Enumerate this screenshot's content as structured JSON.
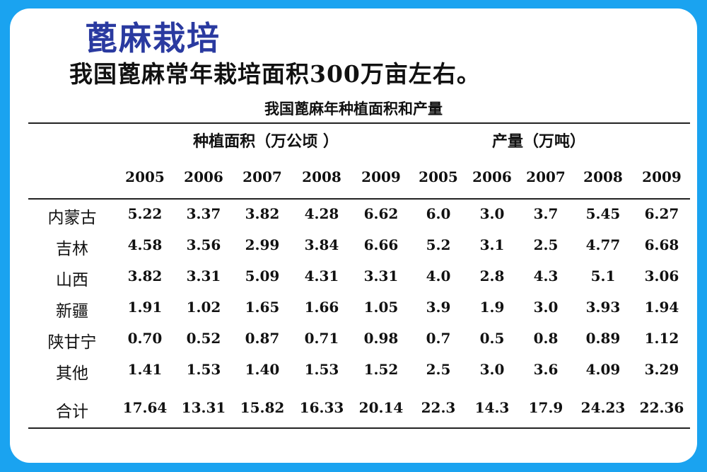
{
  "slide": {
    "title": "蓖麻栽培",
    "subtitle": "我国蓖麻常年栽培面积300万亩左右。"
  },
  "table": {
    "caption": "我国蓖麻年种植面积和产量",
    "group_area": "种植面积（万公顷 ）",
    "group_output": "产量（万吨）",
    "years": [
      "2005",
      "2006",
      "2007",
      "2008",
      "2009",
      "2005",
      "2006",
      "2007",
      "2008",
      "2009"
    ],
    "rows": [
      {
        "region": "内蒙古",
        "values": [
          "5.22",
          "3.37",
          "3.82",
          "4.28",
          "6.62",
          "6.0",
          "3.0",
          "3.7",
          "5.45",
          "6.27"
        ]
      },
      {
        "region": "吉林",
        "values": [
          "4.58",
          "3.56",
          "2.99",
          "3.84",
          "6.66",
          "5.2",
          "3.1",
          "2.5",
          "4.77",
          "6.68"
        ]
      },
      {
        "region": "山西",
        "values": [
          "3.82",
          "3.31",
          "5.09",
          "4.31",
          "3.31",
          "4.0",
          "2.8",
          "4.3",
          "5.1",
          "3.06"
        ]
      },
      {
        "region": "新疆",
        "values": [
          "1.91",
          "1.02",
          "1.65",
          "1.66",
          "1.05",
          "3.9",
          "1.9",
          "3.0",
          "3.93",
          "1.94"
        ]
      },
      {
        "region": "陕甘宁",
        "values": [
          "0.70",
          "0.52",
          "0.87",
          "0.71",
          "0.98",
          "0.7",
          "0.5",
          "0.8",
          "0.89",
          "1.12"
        ]
      },
      {
        "region": "其他",
        "values": [
          "1.41",
          "1.53",
          "1.40",
          "1.53",
          "1.52",
          "2.5",
          "3.0",
          "3.6",
          "4.09",
          "3.29"
        ]
      },
      {
        "region": "合计",
        "values": [
          "17.64",
          "13.31",
          "15.82",
          "16.33",
          "20.14",
          "22.3",
          "14.3",
          "17.9",
          "24.23",
          "22.36"
        ]
      }
    ]
  }
}
